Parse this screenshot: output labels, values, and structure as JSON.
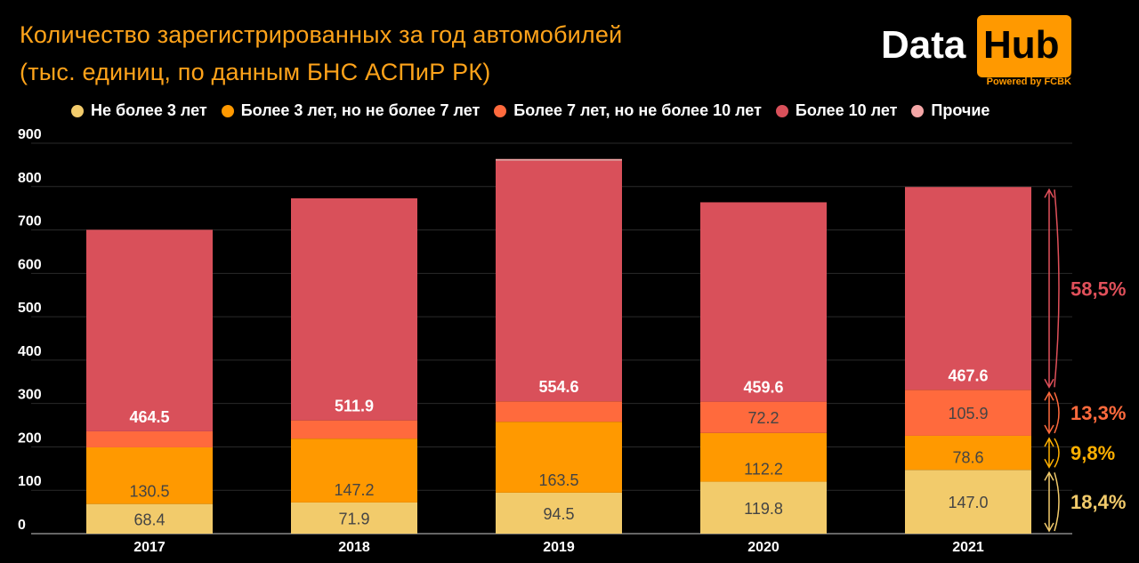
{
  "header": {
    "title_line1": "Количество зарегистрированных за год автомобилей",
    "title_line2": "(тыс. единиц, по данным БНС АСПиР РК)"
  },
  "logo": {
    "data": "Data",
    "hub": "Hub",
    "powered": "Powered by FCBK"
  },
  "colors": {
    "accent": "#ffa31a",
    "s0": "#f2cb6b",
    "s1": "#ff9900",
    "s2": "#ff6a3d",
    "s3": "#d9505a",
    "s4": "#f4a6a6"
  },
  "chart_data": {
    "type": "bar",
    "stacked": true,
    "title": "Количество зарегистрированных за год автомобилей (тыс. единиц, по данным БНС АСПиР РК)",
    "categories": [
      "2017",
      "2018",
      "2019",
      "2020",
      "2021"
    ],
    "ylim": [
      0,
      900
    ],
    "yticks": [
      "0",
      "100",
      "200",
      "300",
      "400",
      "500",
      "600",
      "700",
      "800",
      "900"
    ],
    "series": [
      {
        "name": "Не более 3 лет",
        "color": "#f2cb6b",
        "values": [
          68.4,
          71.9,
          94.5,
          119.8,
          147.0
        ],
        "labels": [
          "68.4",
          "71.9",
          "94.5",
          "119.8",
          "147.0"
        ]
      },
      {
        "name": "Более 3 лет, но не более 7 лет",
        "color": "#ff9900",
        "values": [
          130.5,
          147.2,
          163.5,
          112.2,
          78.6
        ],
        "labels": [
          "130.5",
          "147.2",
          "163.5",
          "112.2",
          "78.6"
        ]
      },
      {
        "name": "Более 7 лет, но не более 10 лет",
        "color": "#ff6a3d",
        "values": [
          37,
          42,
          47,
          72.2,
          105.9
        ],
        "labels": [
          "",
          "",
          "",
          "72.2",
          "105.9"
        ]
      },
      {
        "name": "Более 10 лет",
        "color": "#d9505a",
        "values": [
          464.5,
          511.9,
          554.6,
          459.6,
          467.6
        ],
        "labels": [
          "464.5",
          "511.9",
          "554.6",
          "459.6",
          "467.6"
        ]
      },
      {
        "name": "Прочие",
        "color": "#f4a6a6",
        "values": [
          0,
          0,
          4,
          0,
          0
        ],
        "labels": [
          "",
          "",
          "",
          "",
          ""
        ]
      }
    ],
    "annotations": [
      {
        "text": "58,5%",
        "series": 3,
        "color": "#e0505a"
      },
      {
        "text": "13,3%",
        "series": 2,
        "color": "#ff6a3d"
      },
      {
        "text": "9,8%",
        "series": 1,
        "color": "#ffb000"
      },
      {
        "text": "18,4%",
        "series": 0,
        "color": "#f2cb6b"
      }
    ]
  }
}
